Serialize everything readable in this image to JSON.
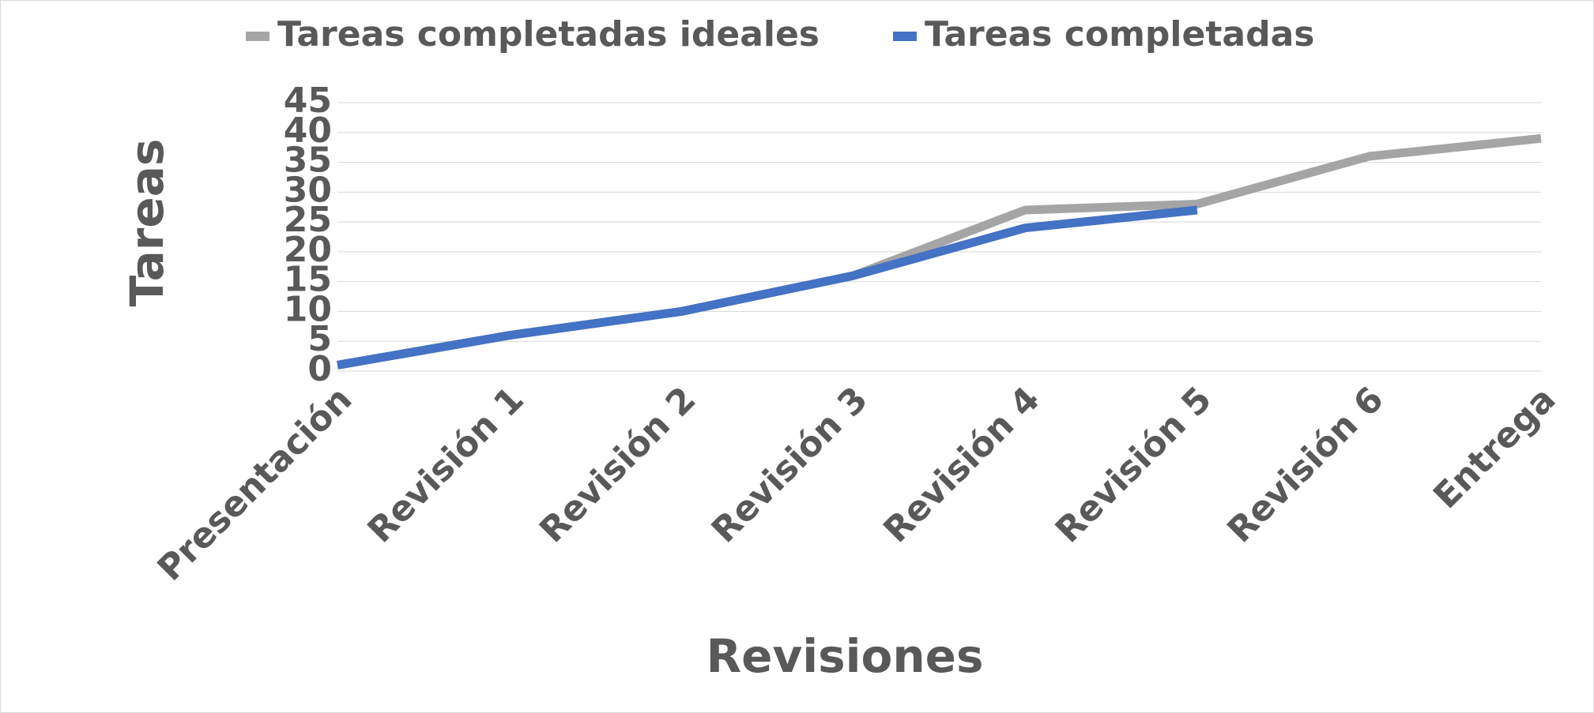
{
  "chart_data": {
    "type": "line",
    "title": "",
    "xlabel": "Revisiones",
    "ylabel": "Tareas",
    "categories": [
      "Presentación",
      "Revisión 1",
      "Revisión 2",
      "Revisión 3",
      "Revisión 4",
      "Revisión 5",
      "Revisión 6",
      "Entrega"
    ],
    "ylim": [
      0,
      45
    ],
    "yticks": [
      "0",
      "5",
      "10",
      "15",
      "20",
      "25",
      "30",
      "35",
      "40",
      "45"
    ],
    "grid": true,
    "legend_position": "top",
    "series": [
      {
        "name": "Tareas completadas ideales",
        "color": "#a5a5a5",
        "values": [
          1,
          6,
          10,
          16,
          27,
          28,
          36,
          39
        ]
      },
      {
        "name": "Tareas completadas",
        "color": "#4472c4",
        "values": [
          1,
          6,
          10,
          16,
          24,
          27,
          null,
          null
        ]
      }
    ],
    "gridline_color": "#d9d9d9",
    "text_color": "#595959"
  }
}
